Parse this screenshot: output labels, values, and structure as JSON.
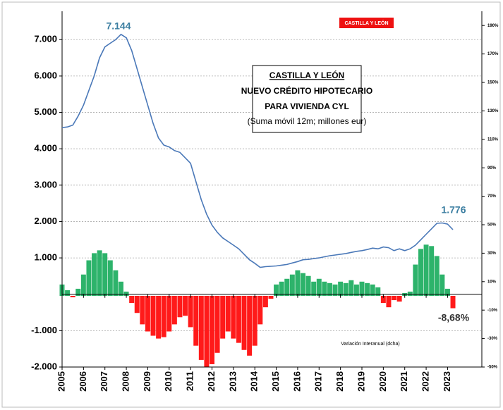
{
  "chart_data": {
    "type": "bar-line",
    "badge": "CASTILLA Y LEÓN",
    "title": "CASTILLA Y LEÓN",
    "subtitle_lines": [
      "NUEVO CRÉDITO  HIPOTECARIO",
      "PARA VIVIENDA CYL",
      "(Suma móvil 12m; millones eur)"
    ],
    "bar_label": "Variación Interanual (dcha)",
    "annotations": [
      "7.144",
      "1.776",
      "-8,68%"
    ],
    "x": [
      2005.0,
      2005.25,
      2005.5,
      2005.75,
      2006.0,
      2006.25,
      2006.5,
      2006.75,
      2007.0,
      2007.25,
      2007.5,
      2007.75,
      2008.0,
      2008.25,
      2008.5,
      2008.75,
      2009.0,
      2009.25,
      2009.5,
      2009.75,
      2010.0,
      2010.25,
      2010.5,
      2010.75,
      2011.0,
      2011.25,
      2011.5,
      2011.75,
      2012.0,
      2012.25,
      2012.5,
      2012.75,
      2013.0,
      2013.25,
      2013.5,
      2013.75,
      2014.0,
      2014.25,
      2014.5,
      2014.75,
      2015.0,
      2015.25,
      2015.5,
      2015.75,
      2016.0,
      2016.25,
      2016.5,
      2016.75,
      2017.0,
      2017.25,
      2017.5,
      2017.75,
      2018.0,
      2018.25,
      2018.5,
      2018.75,
      2019.0,
      2019.25,
      2019.5,
      2019.75,
      2020.0,
      2020.25,
      2020.5,
      2020.75,
      2021.0,
      2021.25,
      2021.5,
      2021.75,
      2022.0,
      2022.25,
      2022.5,
      2022.75,
      2023.0,
      2023.25
    ],
    "series": [
      {
        "color": "#4a78b8",
        "values": [
          4580,
          4600,
          4650,
          4900,
          5200,
          5600,
          6000,
          6500,
          6800,
          6900,
          7000,
          7144,
          7050,
          6700,
          6200,
          5700,
          5200,
          4700,
          4300,
          4100,
          4050,
          3950,
          3900,
          3750,
          3600,
          3100,
          2600,
          2200,
          1900,
          1700,
          1550,
          1450,
          1350,
          1250,
          1100,
          950,
          850,
          740,
          760,
          770,
          780,
          800,
          820,
          860,
          900,
          950,
          960,
          980,
          1000,
          1030,
          1060,
          1080,
          1100,
          1120,
          1150,
          1180,
          1200,
          1230,
          1270,
          1250,
          1300,
          1280,
          1200,
          1250,
          1200,
          1250,
          1350,
          1500,
          1650,
          1800,
          1950,
          1960,
          1930,
          1776
        ]
      },
      {
        "color": "#2db36b",
        "negative_color": "#ff1a1a",
        "axis": "y2",
        "values": [
          8,
          4,
          -1,
          5,
          15,
          25,
          30,
          32,
          30,
          25,
          18,
          10,
          3,
          -5,
          -12,
          -20,
          -25,
          -28,
          -30,
          -29,
          -25,
          -20,
          -15,
          -14,
          -22,
          -35,
          -45,
          -50,
          -48,
          -40,
          -30,
          -25,
          -30,
          -33,
          -38,
          -42,
          -35,
          -20,
          -8,
          -2,
          8,
          10,
          12,
          15,
          18,
          16,
          14,
          10,
          12,
          10,
          9,
          8,
          10,
          9,
          11,
          8,
          10,
          9,
          8,
          6,
          -5,
          -8,
          -3,
          -4,
          2,
          3,
          22,
          33,
          36,
          35,
          28,
          15,
          5,
          -8.68
        ]
      }
    ],
    "xlim": [
      2005,
      2024.6
    ],
    "xticks": [
      2005,
      2006,
      2007,
      2008,
      2009,
      2010,
      2011,
      2012,
      2013,
      2014,
      2015,
      2016,
      2017,
      2018,
      2019,
      2020,
      2021,
      2022,
      2023
    ],
    "ylim": [
      -2000,
      7780
    ],
    "yticks": [
      {
        "value": -2000,
        "label": "-2.000"
      },
      {
        "value": -1000,
        "label": "-1.000"
      },
      {
        "value": 1000,
        "label": "1.000"
      },
      {
        "value": 2000,
        "label": "2.000"
      },
      {
        "value": 3000,
        "label": "3.000"
      },
      {
        "value": 4000,
        "label": "4.000"
      },
      {
        "value": 5000,
        "label": "5.000"
      },
      {
        "value": 6000,
        "label": "6.000"
      },
      {
        "value": 7000,
        "label": "7.000"
      }
    ],
    "y2lim": [
      -50,
      200
    ],
    "y2ticks": [
      {
        "value": -50,
        "label": "-50%"
      },
      {
        "value": -30,
        "label": "-30%"
      },
      {
        "value": -10,
        "label": "-10%"
      },
      {
        "value": 10,
        "label": "10%"
      },
      {
        "value": 30,
        "label": "30%"
      },
      {
        "value": 50,
        "label": "50%"
      },
      {
        "value": 70,
        "label": "70%"
      },
      {
        "value": 90,
        "label": "90%"
      },
      {
        "value": 110,
        "label": "110%"
      },
      {
        "value": 130,
        "label": "130%"
      },
      {
        "value": 150,
        "label": "150%"
      },
      {
        "value": 170,
        "label": "170%"
      },
      {
        "value": 190,
        "label": "190%"
      }
    ],
    "grid": true
  }
}
